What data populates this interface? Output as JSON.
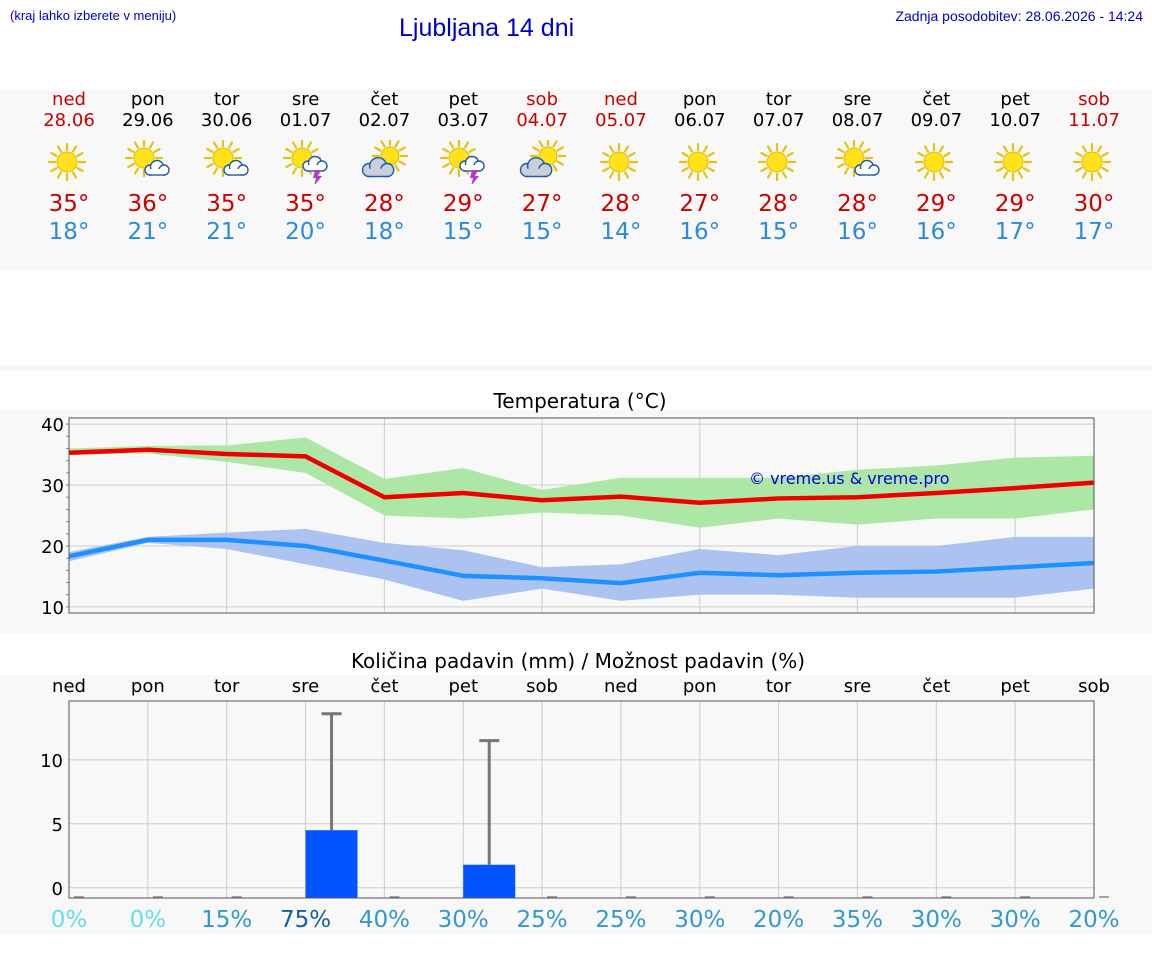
{
  "header": {
    "hint": "(kraj lahko izberete v meniju)",
    "title": "Ljubljana 14 dni",
    "updated": "Zadnja posodobitev: 28.06.2026 - 14:24"
  },
  "colors": {
    "weekend": "#cc0000",
    "max_temp": "#cc0000",
    "min_temp": "#2b8ae0",
    "max_line": "#ee0000",
    "min_line": "#1e90ff",
    "max_range": "#a8e6a0",
    "min_range": "#a8c0f0",
    "bar": "#0055ff"
  },
  "days": [
    {
      "name": "ned",
      "date": "28.06",
      "weekend": true,
      "icon": "sun-icon",
      "tmax": "35°",
      "tmin": "18°"
    },
    {
      "name": "pon",
      "date": "29.06",
      "weekend": false,
      "icon": "sun-cloud-icon",
      "tmax": "36°",
      "tmin": "21°"
    },
    {
      "name": "tor",
      "date": "30.06",
      "weekend": false,
      "icon": "sun-cloud-icon",
      "tmax": "35°",
      "tmin": "21°"
    },
    {
      "name": "sre",
      "date": "01.07",
      "weekend": false,
      "icon": "sun-thunderstorm-icon",
      "tmax": "35°",
      "tmin": "20°"
    },
    {
      "name": "čet",
      "date": "02.07",
      "weekend": false,
      "icon": "cloud-sun-icon",
      "tmax": "28°",
      "tmin": "18°"
    },
    {
      "name": "pet",
      "date": "03.07",
      "weekend": false,
      "icon": "sun-thunderstorm-icon",
      "tmax": "29°",
      "tmin": "15°"
    },
    {
      "name": "sob",
      "date": "04.07",
      "weekend": true,
      "icon": "cloud-sun-icon",
      "tmax": "27°",
      "tmin": "15°"
    },
    {
      "name": "ned",
      "date": "05.07",
      "weekend": true,
      "icon": "sun-icon",
      "tmax": "28°",
      "tmin": "14°"
    },
    {
      "name": "pon",
      "date": "06.07",
      "weekend": false,
      "icon": "sun-icon",
      "tmax": "27°",
      "tmin": "16°"
    },
    {
      "name": "tor",
      "date": "07.07",
      "weekend": false,
      "icon": "sun-icon",
      "tmax": "28°",
      "tmin": "15°"
    },
    {
      "name": "sre",
      "date": "08.07",
      "weekend": false,
      "icon": "sun-cloud-icon",
      "tmax": "28°",
      "tmin": "16°"
    },
    {
      "name": "čet",
      "date": "09.07",
      "weekend": false,
      "icon": "sun-icon",
      "tmax": "29°",
      "tmin": "16°"
    },
    {
      "name": "pet",
      "date": "10.07",
      "weekend": false,
      "icon": "sun-icon",
      "tmax": "29°",
      "tmin": "17°"
    },
    {
      "name": "sob",
      "date": "11.07",
      "weekend": true,
      "icon": "sun-icon",
      "tmax": "30°",
      "tmin": "17°"
    }
  ],
  "chart_data": [
    {
      "type": "line",
      "title": "Temperatura (°C)",
      "watermark": "© vreme.us & vreme.pro",
      "x": [
        "28.06",
        "29.06",
        "30.06",
        "01.07",
        "02.07",
        "03.07",
        "04.07",
        "05.07",
        "06.07",
        "07.07",
        "08.07",
        "09.07",
        "10.07",
        "11.07"
      ],
      "ylim": [
        9,
        41
      ],
      "yticks": [
        10,
        20,
        30,
        40
      ],
      "grid": true,
      "series": [
        {
          "values": [
            35.3,
            35.8,
            35.1,
            34.7,
            28.0,
            28.7,
            27.5,
            28.1,
            27.1,
            27.8,
            28.0,
            28.7,
            29.5,
            30.4
          ]
        },
        {
          "values": [
            18.3,
            21.0,
            21.0,
            20.0,
            17.6,
            15.1,
            14.7,
            13.9,
            15.6,
            15.2,
            15.6,
            15.8,
            16.5,
            17.2
          ]
        }
      ],
      "bands": [
        {
          "low": [
            35.0,
            35.2,
            33.8,
            32.0,
            25.0,
            24.5,
            25.5,
            25.0,
            23.0,
            24.5,
            23.5,
            24.5,
            24.5,
            26.0
          ],
          "high": [
            36.0,
            36.4,
            36.5,
            37.8,
            31.0,
            32.8,
            29.2,
            31.2,
            31.2,
            31.2,
            32.5,
            33.2,
            34.5,
            34.8
          ]
        },
        {
          "low": [
            17.5,
            20.5,
            19.5,
            17.0,
            14.5,
            11.0,
            13.0,
            11.0,
            12.0,
            12.0,
            11.5,
            11.5,
            11.5,
            13.0
          ],
          "high": [
            19.0,
            21.5,
            22.2,
            22.8,
            20.5,
            19.3,
            16.5,
            17.0,
            19.5,
            18.5,
            20.0,
            20.0,
            21.5,
            21.5
          ]
        }
      ]
    },
    {
      "type": "bar",
      "title": "Količina padavin (mm) / Možnost padavin (%)",
      "categories": [
        "ned",
        "pon",
        "tor",
        "sre",
        "čet",
        "pet",
        "sob",
        "ned",
        "pon",
        "tor",
        "sre",
        "čet",
        "pet",
        "sob"
      ],
      "values": [
        0,
        0,
        0,
        4.5,
        0,
        1.8,
        0,
        0,
        0,
        0,
        0,
        0,
        0,
        0
      ],
      "error_max": [
        0,
        0,
        0,
        13.6,
        0,
        11.5,
        0,
        0,
        0,
        0,
        0,
        0,
        0,
        0
      ],
      "ylim": [
        -0.8,
        14.6
      ],
      "yticks": [
        0,
        5,
        10
      ],
      "probability": [
        "0%",
        "0%",
        "15%",
        "75%",
        "40%",
        "30%",
        "25%",
        "25%",
        "30%",
        "20%",
        "35%",
        "30%",
        "30%",
        "20%"
      ],
      "probability_colors": [
        "#66ddee",
        "#66ddee",
        "#3399cc",
        "#1a5f9e",
        "#3399cc",
        "#3399cc",
        "#3399cc",
        "#3399cc",
        "#3399cc",
        "#3399cc",
        "#3399cc",
        "#3399cc",
        "#3399cc",
        "#3399cc"
      ]
    }
  ]
}
